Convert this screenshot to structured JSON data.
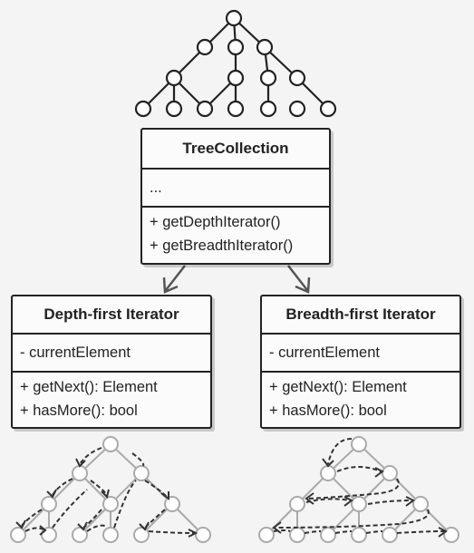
{
  "tree_collection": {
    "name": "TreeCollection",
    "fields": [
      "..."
    ],
    "methods": [
      "+ getDepthIterator()",
      "+ getBreadthIterator()"
    ]
  },
  "depth_iterator": {
    "name": "Depth-first Iterator",
    "fields": [
      "- currentElement"
    ],
    "methods": [
      "+ getNext(): Element",
      "+ hasMore(): bool"
    ]
  },
  "breadth_iterator": {
    "name": "Breadth-first Iterator",
    "fields": [
      "- currentElement"
    ],
    "methods": [
      "+ getNext(): Element",
      "+ hasMore(): bool"
    ]
  },
  "colors": {
    "ink": "#222222",
    "node_fill": "#ffffff",
    "light_ink": "#9a9a9a",
    "background": "#f4f4f4"
  }
}
